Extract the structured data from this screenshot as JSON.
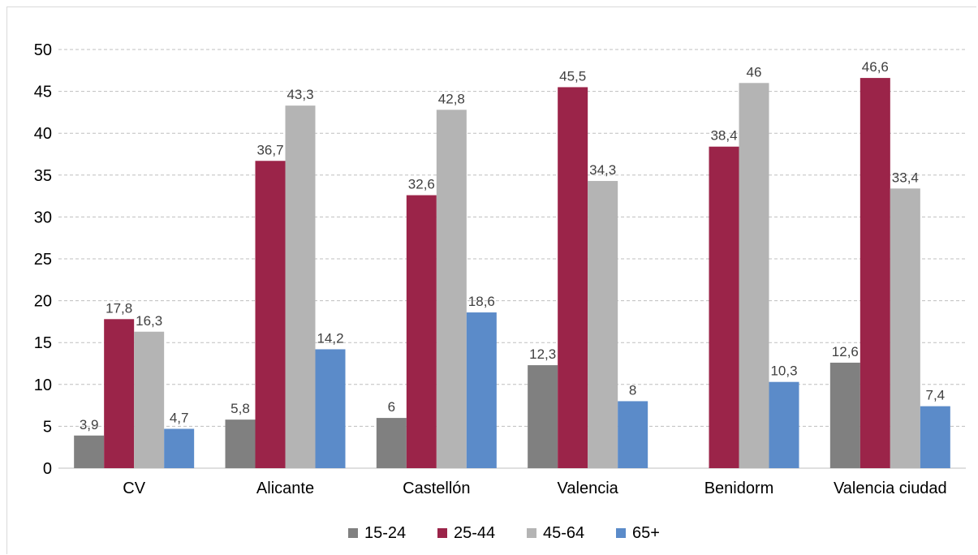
{
  "chart_data": {
    "type": "bar",
    "categories": [
      "CV",
      "Alicante",
      "Castellón",
      "Valencia",
      "Benidorm",
      "Valencia ciudad"
    ],
    "series": [
      {
        "name": "15-24",
        "color": "#808080",
        "values": [
          3.9,
          5.8,
          6,
          12.3,
          null,
          12.6
        ],
        "labels": [
          "3,9",
          "5,8",
          "6",
          "12,3",
          "",
          "12,6"
        ]
      },
      {
        "name": "25-44",
        "color": "#9b2449",
        "values": [
          17.8,
          36.7,
          32.6,
          45.5,
          38.4,
          46.6
        ],
        "labels": [
          "17,8",
          "36,7",
          "32,6",
          "45,5",
          "38,4",
          "46,6"
        ]
      },
      {
        "name": "45-64",
        "color": "#b4b4b4",
        "values": [
          16.3,
          43.3,
          42.8,
          34.3,
          46,
          33.4
        ],
        "labels": [
          "16,3",
          "43,3",
          "42,8",
          "34,3",
          "46",
          "33,4"
        ]
      },
      {
        "name": "65+",
        "color": "#5b8bc9",
        "values": [
          4.7,
          14.2,
          18.6,
          8,
          10.3,
          7.4
        ],
        "labels": [
          "4,7",
          "14,2",
          "18,6",
          "8",
          "10,3",
          "7,4"
        ]
      }
    ],
    "ylim": [
      0,
      50
    ],
    "yticks": [
      0,
      5,
      10,
      15,
      20,
      25,
      30,
      35,
      40,
      45,
      50
    ],
    "grid": true,
    "legend": "bottom"
  }
}
